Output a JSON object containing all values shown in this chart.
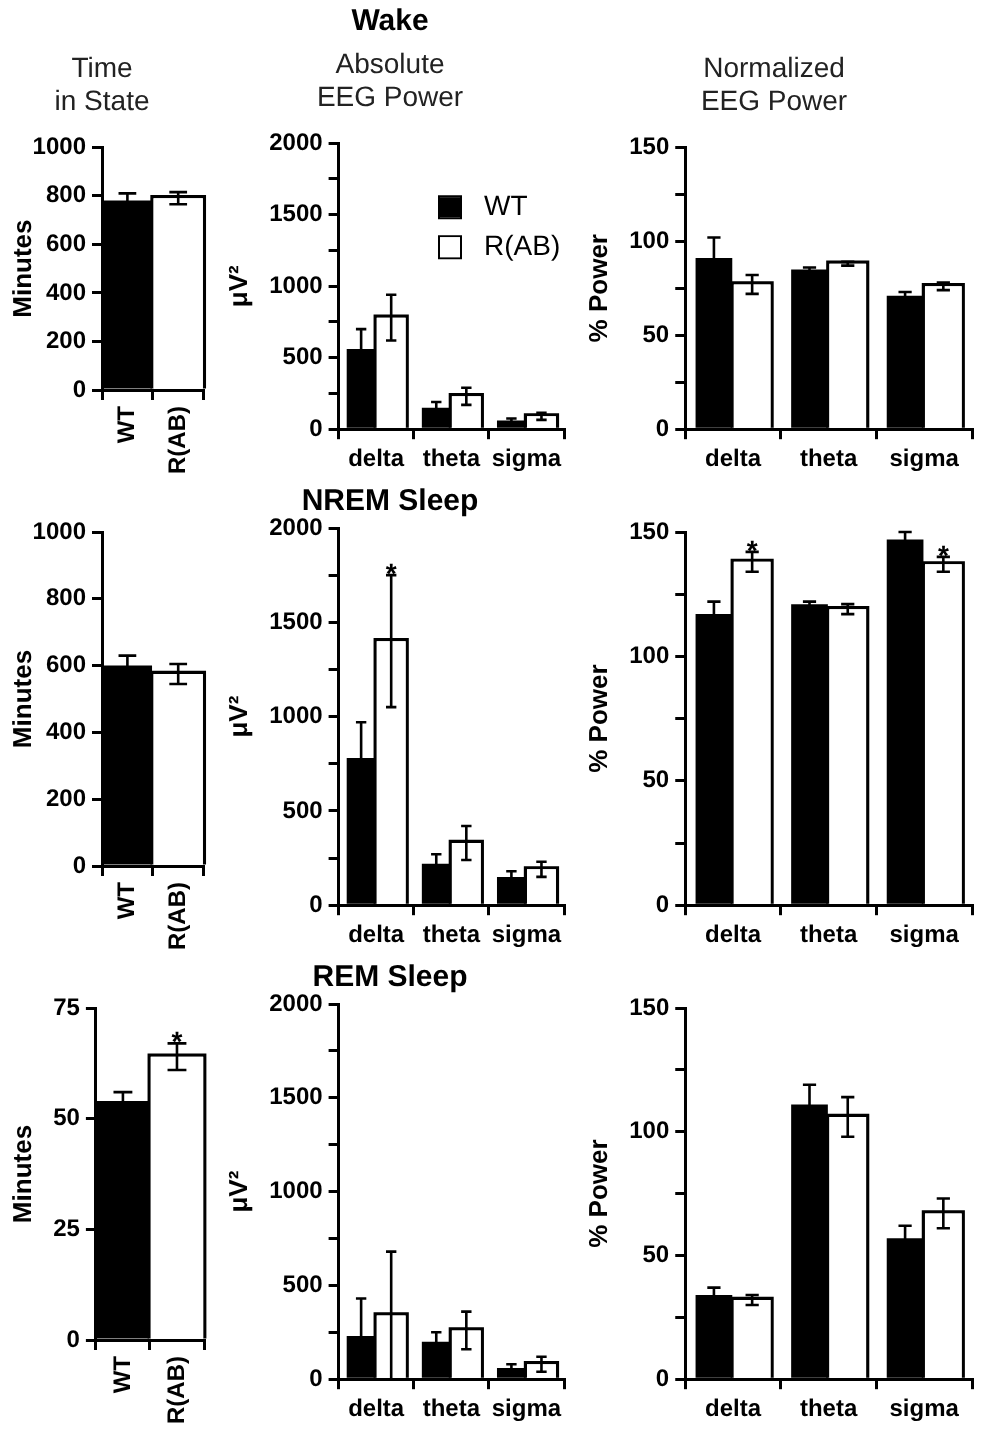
{
  "chart_data": [
    {
      "type": "bar",
      "subtitle": "Time\nin State",
      "ylabel": "Minutes",
      "categories": [
        "WT",
        "R(AB)"
      ],
      "values": [
        780,
        790
      ],
      "errors": [
        30,
        25
      ],
      "colors": [
        "#000000",
        "#ffffff"
      ],
      "ylim": [
        0,
        1000
      ],
      "yticks": [
        0,
        200,
        400,
        600,
        800,
        1000
      ]
    },
    {
      "type": "bar",
      "title": "Wake",
      "subtitle": "Absolute\nEEG Power",
      "ylabel": "μV²",
      "categories": [
        "delta",
        "theta",
        "sigma"
      ],
      "legend": "top right",
      "series": [
        {
          "name": "WT",
          "color": "#000000",
          "values": [
            560,
            150,
            60
          ],
          "errors": [
            140,
            40,
            15
          ]
        },
        {
          "name": "R(AB)",
          "color": "#ffffff",
          "values": [
            780,
            230,
            90
          ],
          "errors": [
            160,
            60,
            25
          ]
        }
      ],
      "ylim": [
        0,
        2000
      ],
      "yticks": [
        0,
        {
          "value": 250,
          "label": null
        },
        500,
        {
          "value": 750,
          "label": null
        },
        1000,
        {
          "value": 1250,
          "label": null
        },
        1500,
        {
          "value": 1750,
          "label": null
        },
        2000
      ]
    },
    {
      "type": "bar",
      "subtitle": "Normalized\nEEG Power",
      "ylabel": "% Power",
      "categories": [
        "delta",
        "theta",
        "sigma"
      ],
      "series": [
        {
          "color": "#000000",
          "values": [
            91,
            85,
            71
          ],
          "errors": [
            11,
            1,
            2
          ]
        },
        {
          "color": "#ffffff",
          "values": [
            77,
            88,
            76
          ],
          "errors": [
            5,
            1,
            2
          ]
        }
      ],
      "ylim": [
        0,
        150
      ],
      "yticks": [
        0,
        {
          "value": 25,
          "label": null
        },
        50,
        {
          "value": 75,
          "label": null
        },
        100,
        {
          "value": 125,
          "label": null
        },
        150
      ]
    },
    {
      "type": "bar",
      "ylabel": "Minutes",
      "categories": [
        "WT",
        "R(AB)"
      ],
      "values": [
        600,
        575
      ],
      "errors": [
        30,
        30
      ],
      "colors": [
        "#000000",
        "#ffffff"
      ],
      "ylim": [
        0,
        1000
      ],
      "yticks": [
        0,
        200,
        400,
        600,
        800,
        1000
      ]
    },
    {
      "type": "bar",
      "title": "NREM Sleep",
      "ylabel": "μV²",
      "categories": [
        "delta",
        "theta",
        "sigma"
      ],
      "series": [
        {
          "color": "#000000",
          "values": [
            780,
            220,
            150
          ],
          "errors": [
            190,
            50,
            30
          ]
        },
        {
          "color": "#ffffff",
          "values": [
            1400,
            330,
            190
          ],
          "errors": [
            350,
            90,
            40
          ]
        }
      ],
      "annotations": [
        {
          "text": "*",
          "x": "delta",
          "y": 1400
        }
      ],
      "ylim": [
        0,
        2000
      ],
      "yticks": [
        0,
        {
          "value": 250,
          "label": null
        },
        500,
        {
          "value": 750,
          "label": null
        },
        1000,
        {
          "value": 1250,
          "label": null
        },
        1500,
        {
          "value": 1750,
          "label": null
        },
        2000
      ]
    },
    {
      "type": "bar",
      "ylabel": "% Power",
      "categories": [
        "delta",
        "theta",
        "sigma"
      ],
      "series": [
        {
          "color": "#000000",
          "values": [
            117,
            121,
            147
          ],
          "errors": [
            5,
            1,
            3
          ]
        },
        {
          "color": "#ffffff",
          "values": [
            138,
            119,
            137
          ],
          "errors": [
            4,
            2,
            3
          ]
        }
      ],
      "annotations": [
        {
          "text": "*",
          "x": "delta",
          "y": 138
        },
        {
          "text": "*",
          "x": "sigma",
          "y": 137
        }
      ],
      "ylim": [
        0,
        150
      ],
      "yticks": [
        0,
        {
          "value": 25,
          "label": null
        },
        50,
        {
          "value": 75,
          "label": null
        },
        100,
        {
          "value": 125,
          "label": null
        },
        150
      ]
    },
    {
      "type": "bar",
      "ylabel": "Minutes",
      "categories": [
        "WT",
        "R(AB)"
      ],
      "values": [
        54,
        64
      ],
      "errors": [
        2,
        3
      ],
      "colors": [
        "#000000",
        "#ffffff"
      ],
      "annotations": [
        {
          "text": "*",
          "x": "R(AB)",
          "y": 64
        }
      ],
      "ylim": [
        0,
        75
      ],
      "yticks": [
        0,
        25,
        50,
        75
      ]
    },
    {
      "type": "bar",
      "title": "REM Sleep",
      "ylabel": "μV²",
      "categories": [
        "delta",
        "theta",
        "sigma"
      ],
      "series": [
        {
          "color": "#000000",
          "values": [
            230,
            200,
            60
          ],
          "errors": [
            200,
            50,
            20
          ]
        },
        {
          "color": "#ffffff",
          "values": [
            340,
            260,
            80
          ],
          "errors": [
            340,
            100,
            40
          ]
        }
      ],
      "ylim": [
        0,
        2000
      ],
      "yticks": [
        0,
        {
          "value": 250,
          "label": null
        },
        500,
        {
          "value": 750,
          "label": null
        },
        1000,
        {
          "value": 1250,
          "label": null
        },
        1500,
        {
          "value": 1750,
          "label": null
        },
        2000
      ]
    },
    {
      "type": "bar",
      "ylabel": "% Power",
      "categories": [
        "delta",
        "theta",
        "sigma"
      ],
      "series": [
        {
          "color": "#000000",
          "values": [
            34,
            111,
            57
          ],
          "errors": [
            3,
            8,
            5
          ]
        },
        {
          "color": "#ffffff",
          "values": [
            32,
            106,
            67
          ],
          "errors": [
            2,
            8,
            6
          ]
        }
      ],
      "ylim": [
        0,
        150
      ],
      "yticks": [
        0,
        {
          "value": 25,
          "label": null
        },
        50,
        {
          "value": 75,
          "label": null
        },
        100,
        {
          "value": 125,
          "label": null
        },
        150
      ]
    }
  ]
}
